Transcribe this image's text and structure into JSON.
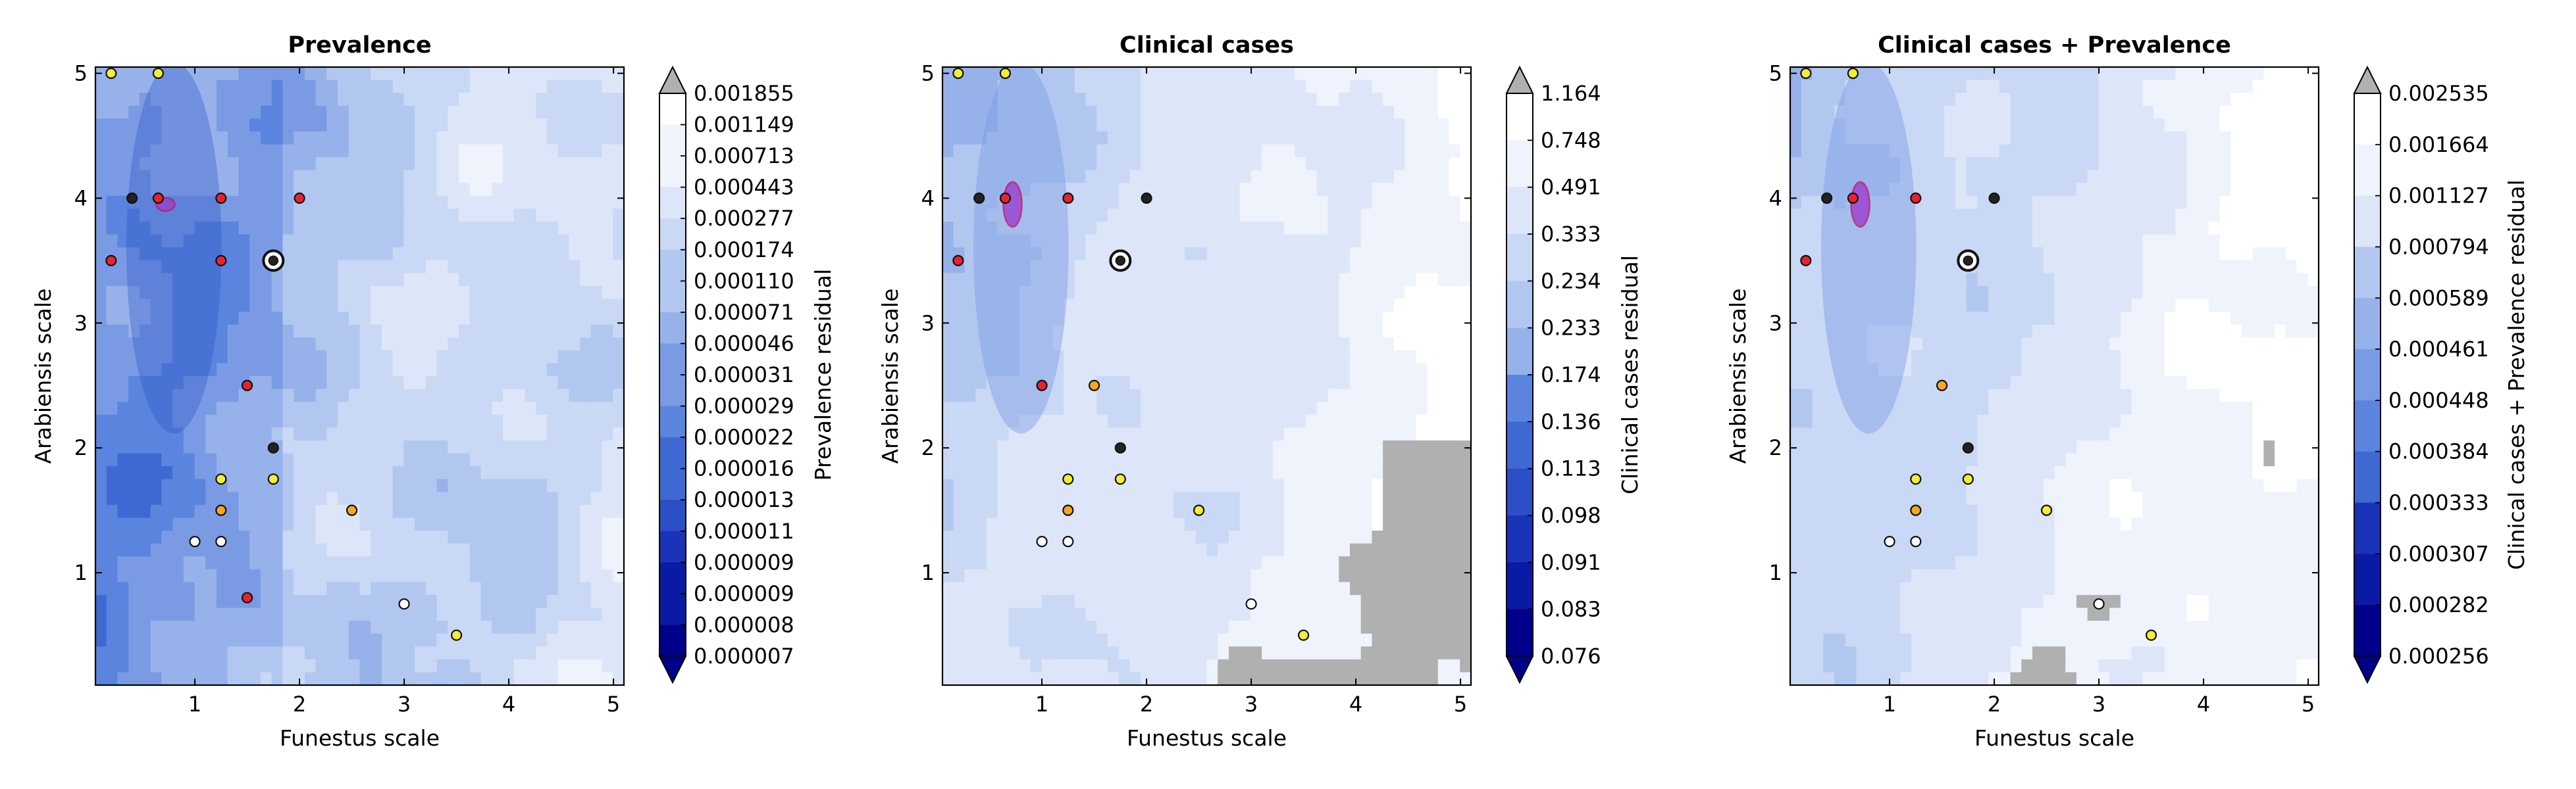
{
  "colors": {
    "bin_scale": [
      "#00008b",
      "#0a1aa5",
      "#1a33b8",
      "#2a4fc6",
      "#3f69d2",
      "#5a84de",
      "#7a9be4",
      "#97b2ea",
      "#b2c7f0",
      "#c9d8f4",
      "#dde6f8",
      "#eef3fc",
      "#ffffff"
    ],
    "over_color": "#b0b0b0",
    "nodata_color": "#b0b0b0",
    "highlight_fill": "#9b3fd0",
    "highlight_edge": "#c0185c"
  },
  "chart_data": [
    {
      "type": "heatmap",
      "title": "Prevalence",
      "xlabel": "Funestus scale",
      "ylabel": "Arabiensis scale",
      "xlim": [
        0.05,
        5.1
      ],
      "ylim": [
        0.1,
        5.05
      ],
      "xticks": [
        "1",
        "2",
        "3",
        "4",
        "5"
      ],
      "yticks": [
        "1",
        "2",
        "3",
        "4",
        "5"
      ],
      "colorbar": {
        "label": "Prevalence residual",
        "levels": [
          "0.001855",
          "0.001149",
          "0.000713",
          "0.000443",
          "0.000277",
          "0.000174",
          "0.000110",
          "0.000071",
          "0.000046",
          "0.000031",
          "0.000029",
          "0.000022",
          "0.000016",
          "0.000013",
          "0.000011",
          "0.000009",
          "0.000009",
          "0.000008",
          "0.000007"
        ]
      },
      "points": [
        {
          "x": 0.2,
          "y": 5.0,
          "c": "yellow"
        },
        {
          "x": 0.65,
          "y": 5.0,
          "c": "yellow"
        },
        {
          "x": 0.4,
          "y": 4.0,
          "c": "black"
        },
        {
          "x": 0.65,
          "y": 4.0,
          "c": "red"
        },
        {
          "x": 1.25,
          "y": 4.0,
          "c": "red"
        },
        {
          "x": 2.0,
          "y": 4.0,
          "c": "red"
        },
        {
          "x": 0.2,
          "y": 3.5,
          "c": "red"
        },
        {
          "x": 1.25,
          "y": 3.5,
          "c": "red"
        },
        {
          "x": 1.5,
          "y": 2.5,
          "c": "red"
        },
        {
          "x": 1.75,
          "y": 2.0,
          "c": "black"
        },
        {
          "x": 1.25,
          "y": 1.75,
          "c": "yellow"
        },
        {
          "x": 1.75,
          "y": 1.75,
          "c": "yellow"
        },
        {
          "x": 1.25,
          "y": 1.5,
          "c": "orange"
        },
        {
          "x": 2.5,
          "y": 1.5,
          "c": "orange"
        },
        {
          "x": 1.0,
          "y": 1.25,
          "c": "white"
        },
        {
          "x": 1.25,
          "y": 1.25,
          "c": "white"
        },
        {
          "x": 1.5,
          "y": 0.8,
          "c": "red"
        },
        {
          "x": 3.0,
          "y": 0.75,
          "c": "white"
        },
        {
          "x": 3.5,
          "y": 0.5,
          "c": "yellow"
        }
      ],
      "best": {
        "x": 1.75,
        "y": 3.5
      }
    },
    {
      "type": "heatmap",
      "title": "Clinical cases",
      "xlabel": "Funestus scale",
      "ylabel": "Arabiensis scale",
      "xlim": [
        0.05,
        5.1
      ],
      "ylim": [
        0.1,
        5.05
      ],
      "xticks": [
        "1",
        "2",
        "3",
        "4",
        "5"
      ],
      "yticks": [
        "1",
        "2",
        "3",
        "4",
        "5"
      ],
      "colorbar": {
        "label": "Clinical cases residual",
        "levels": [
          "1.164",
          "0.748",
          "0.491",
          "0.333",
          "0.234",
          "0.233",
          "0.174",
          "0.136",
          "0.113",
          "0.098",
          "0.091",
          "0.083",
          "0.076"
        ]
      },
      "points": [
        {
          "x": 0.2,
          "y": 5.0,
          "c": "yellow"
        },
        {
          "x": 0.65,
          "y": 5.0,
          "c": "yellow"
        },
        {
          "x": 0.4,
          "y": 4.0,
          "c": "black"
        },
        {
          "x": 0.65,
          "y": 4.0,
          "c": "red"
        },
        {
          "x": 1.25,
          "y": 4.0,
          "c": "red"
        },
        {
          "x": 2.0,
          "y": 4.0,
          "c": "black"
        },
        {
          "x": 0.2,
          "y": 3.5,
          "c": "red"
        },
        {
          "x": 1.0,
          "y": 2.5,
          "c": "red"
        },
        {
          "x": 1.5,
          "y": 2.5,
          "c": "orange"
        },
        {
          "x": 1.75,
          "y": 2.0,
          "c": "black"
        },
        {
          "x": 1.25,
          "y": 1.75,
          "c": "yellow"
        },
        {
          "x": 1.75,
          "y": 1.75,
          "c": "yellow"
        },
        {
          "x": 1.25,
          "y": 1.5,
          "c": "orange"
        },
        {
          "x": 2.5,
          "y": 1.5,
          "c": "yellow"
        },
        {
          "x": 1.0,
          "y": 1.25,
          "c": "white"
        },
        {
          "x": 1.25,
          "y": 1.25,
          "c": "white"
        },
        {
          "x": 3.0,
          "y": 0.75,
          "c": "white"
        },
        {
          "x": 3.5,
          "y": 0.5,
          "c": "yellow"
        }
      ],
      "best": {
        "x": 1.75,
        "y": 3.5
      }
    },
    {
      "type": "heatmap",
      "title": "Clinical cases + Prevalence",
      "xlabel": "Funestus scale",
      "ylabel": "Arabiensis scale",
      "xlim": [
        0.05,
        5.1
      ],
      "ylim": [
        0.1,
        5.05
      ],
      "xticks": [
        "1",
        "2",
        "3",
        "4",
        "5"
      ],
      "yticks": [
        "1",
        "2",
        "3",
        "4",
        "5"
      ],
      "colorbar": {
        "label": "Clinical cases + Prevalence residual",
        "levels": [
          "0.002535",
          "0.001664",
          "0.001127",
          "0.000794",
          "0.000589",
          "0.000461",
          "0.000448",
          "0.000384",
          "0.000333",
          "0.000307",
          "0.000282",
          "0.000256"
        ]
      },
      "points": [
        {
          "x": 0.2,
          "y": 5.0,
          "c": "yellow"
        },
        {
          "x": 0.65,
          "y": 5.0,
          "c": "yellow"
        },
        {
          "x": 0.4,
          "y": 4.0,
          "c": "black"
        },
        {
          "x": 0.65,
          "y": 4.0,
          "c": "red"
        },
        {
          "x": 1.25,
          "y": 4.0,
          "c": "red"
        },
        {
          "x": 2.0,
          "y": 4.0,
          "c": "black"
        },
        {
          "x": 0.2,
          "y": 3.5,
          "c": "red"
        },
        {
          "x": 1.5,
          "y": 2.5,
          "c": "orange"
        },
        {
          "x": 1.75,
          "y": 2.0,
          "c": "black"
        },
        {
          "x": 1.25,
          "y": 1.75,
          "c": "yellow"
        },
        {
          "x": 1.75,
          "y": 1.75,
          "c": "yellow"
        },
        {
          "x": 1.25,
          "y": 1.5,
          "c": "orange"
        },
        {
          "x": 2.5,
          "y": 1.5,
          "c": "yellow"
        },
        {
          "x": 1.0,
          "y": 1.25,
          "c": "white"
        },
        {
          "x": 1.25,
          "y": 1.25,
          "c": "white"
        },
        {
          "x": 3.0,
          "y": 0.75,
          "c": "white"
        },
        {
          "x": 3.5,
          "y": 0.5,
          "c": "yellow"
        }
      ],
      "best": {
        "x": 1.75,
        "y": 3.5
      }
    }
  ]
}
